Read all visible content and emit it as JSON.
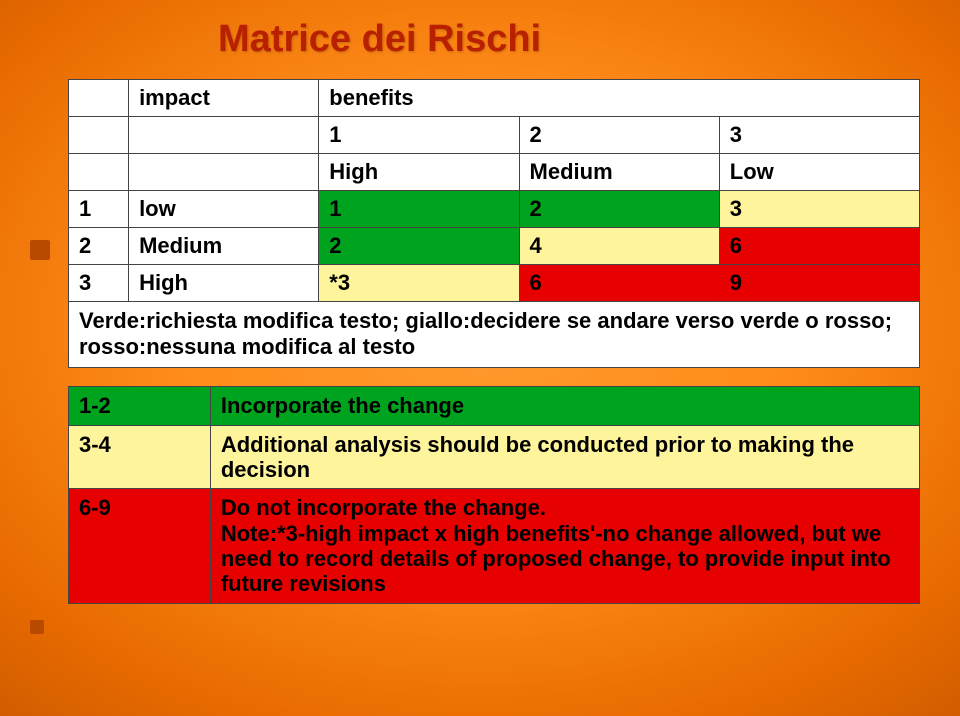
{
  "title": "Matrice dei Rischi",
  "colors": {
    "white": "#ffffff",
    "green": "#00a31e",
    "yellow": "#fef49b",
    "red": "#e70000",
    "title": "#b92000"
  },
  "matrix": {
    "header1": {
      "impact": "impact",
      "benefits": "benefits"
    },
    "nums": {
      "c1": "1",
      "c2": "2",
      "c3": "3"
    },
    "levels": {
      "c1": "High",
      "c2": "Medium",
      "c3": "Low"
    },
    "r1": {
      "n": "1",
      "label": "low",
      "c1": "1",
      "c2": "2",
      "c3": "3"
    },
    "r2": {
      "n": "2",
      "label": "Medium",
      "c1": "2",
      "c2": "4",
      "c3": "6"
    },
    "r3": {
      "n": "3",
      "label": "High",
      "c1": "*3",
      "c2": "6",
      "c3": "9"
    }
  },
  "legend": "Verde:richiesta modifica testo; giallo:decidere se andare verso verde o rosso; rosso:nessuna modifica al testo",
  "actions": {
    "r1": {
      "range": "1-2",
      "desc": "Incorporate the change"
    },
    "r2": {
      "range": "3-4",
      "desc": "Additional analysis should be conducted prior to making the decision"
    },
    "r3": {
      "range": "6-9",
      "desc": "Do not incorporate the change.\nNote:*3-high impact x high benefits'-no change allowed, but we need to record details of proposed change, to provide input into future revisions"
    }
  }
}
